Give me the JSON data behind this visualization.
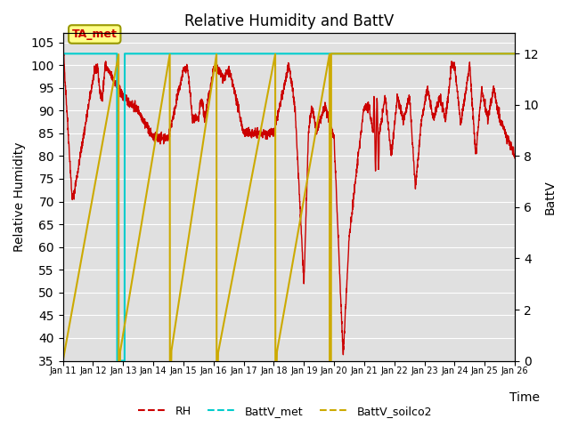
{
  "title": "Relative Humidity and BattV",
  "xlabel": "Time",
  "ylabel_left": "Relative Humidity",
  "ylabel_right": "BattV",
  "ylim_left": [
    35,
    107
  ],
  "ylim_right": [
    0,
    12.8
  ],
  "yticks_left": [
    35,
    40,
    45,
    50,
    55,
    60,
    65,
    70,
    75,
    80,
    85,
    90,
    95,
    100,
    105
  ],
  "yticks_right": [
    0,
    2,
    4,
    6,
    8,
    10,
    12
  ],
  "bg_color": "#e0e0e0",
  "grid_color": "#ffffff",
  "annotation_text": "TA_met",
  "RH_color": "#cc0000",
  "BattV_met_color": "#00cccc",
  "BattV_soilco2_color": "#ccaa00",
  "fig_bg": "#ffffff",
  "xlim_start": 0,
  "xlim_end": 15
}
